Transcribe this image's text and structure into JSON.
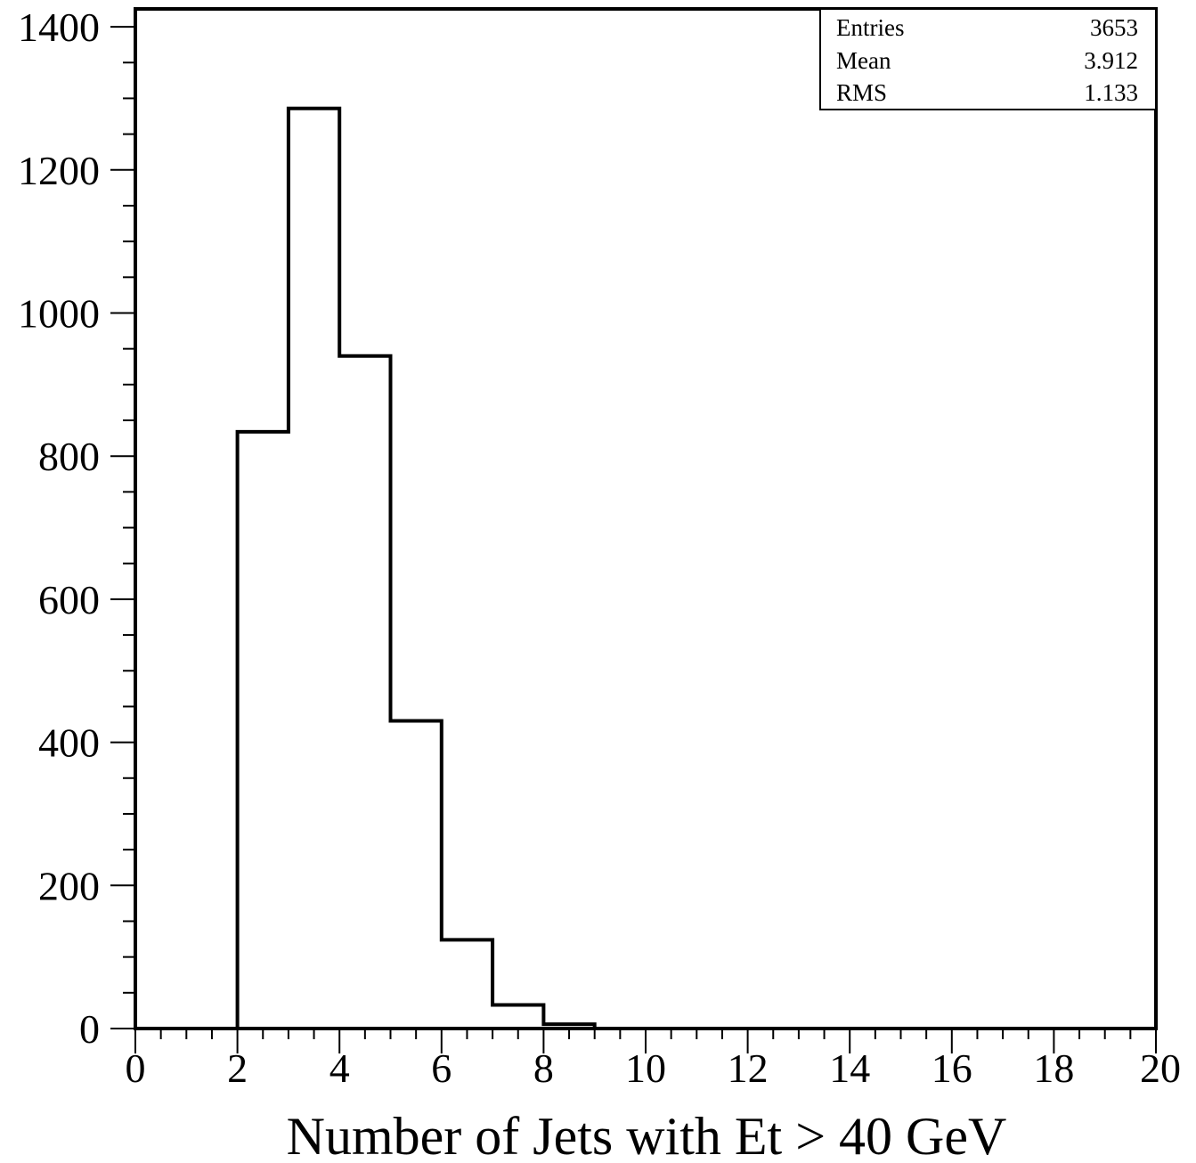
{
  "chart_data": {
    "type": "bar",
    "style": "step-histogram",
    "title": "",
    "xlabel": "Number of Jets with Et > 40 GeV",
    "ylabel": "",
    "xlim": [
      0,
      20
    ],
    "ylim": [
      0,
      1425
    ],
    "x_ticks": [
      0,
      2,
      4,
      6,
      8,
      10,
      12,
      14,
      16,
      18,
      20
    ],
    "y_ticks": [
      0,
      200,
      400,
      600,
      800,
      1000,
      1200,
      1400
    ],
    "bins": [
      {
        "low": 0,
        "high": 1,
        "value": 0
      },
      {
        "low": 1,
        "high": 2,
        "value": 0
      },
      {
        "low": 2,
        "high": 3,
        "value": 834
      },
      {
        "low": 3,
        "high": 4,
        "value": 1286
      },
      {
        "low": 4,
        "high": 5,
        "value": 940
      },
      {
        "low": 5,
        "high": 6,
        "value": 430
      },
      {
        "low": 6,
        "high": 7,
        "value": 124
      },
      {
        "low": 7,
        "high": 8,
        "value": 33
      },
      {
        "low": 8,
        "high": 9,
        "value": 6
      },
      {
        "low": 9,
        "high": 10,
        "value": 0
      },
      {
        "low": 10,
        "high": 11,
        "value": 0
      },
      {
        "low": 11,
        "high": 12,
        "value": 0
      },
      {
        "low": 12,
        "high": 13,
        "value": 0
      },
      {
        "low": 13,
        "high": 14,
        "value": 0
      },
      {
        "low": 14,
        "high": 15,
        "value": 0
      },
      {
        "low": 15,
        "high": 16,
        "value": 0
      },
      {
        "low": 16,
        "high": 17,
        "value": 0
      },
      {
        "low": 17,
        "high": 18,
        "value": 0
      },
      {
        "low": 18,
        "high": 19,
        "value": 0
      },
      {
        "low": 19,
        "high": 20,
        "value": 0
      }
    ],
    "grid": false,
    "legend": "none",
    "line_color": "#000000",
    "stats_box": {
      "placement": "top-right",
      "rows": [
        {
          "label": "Entries",
          "value": "3653"
        },
        {
          "label": "Mean",
          "value": "3.912"
        },
        {
          "label": "RMS",
          "value": "1.133"
        }
      ]
    }
  }
}
